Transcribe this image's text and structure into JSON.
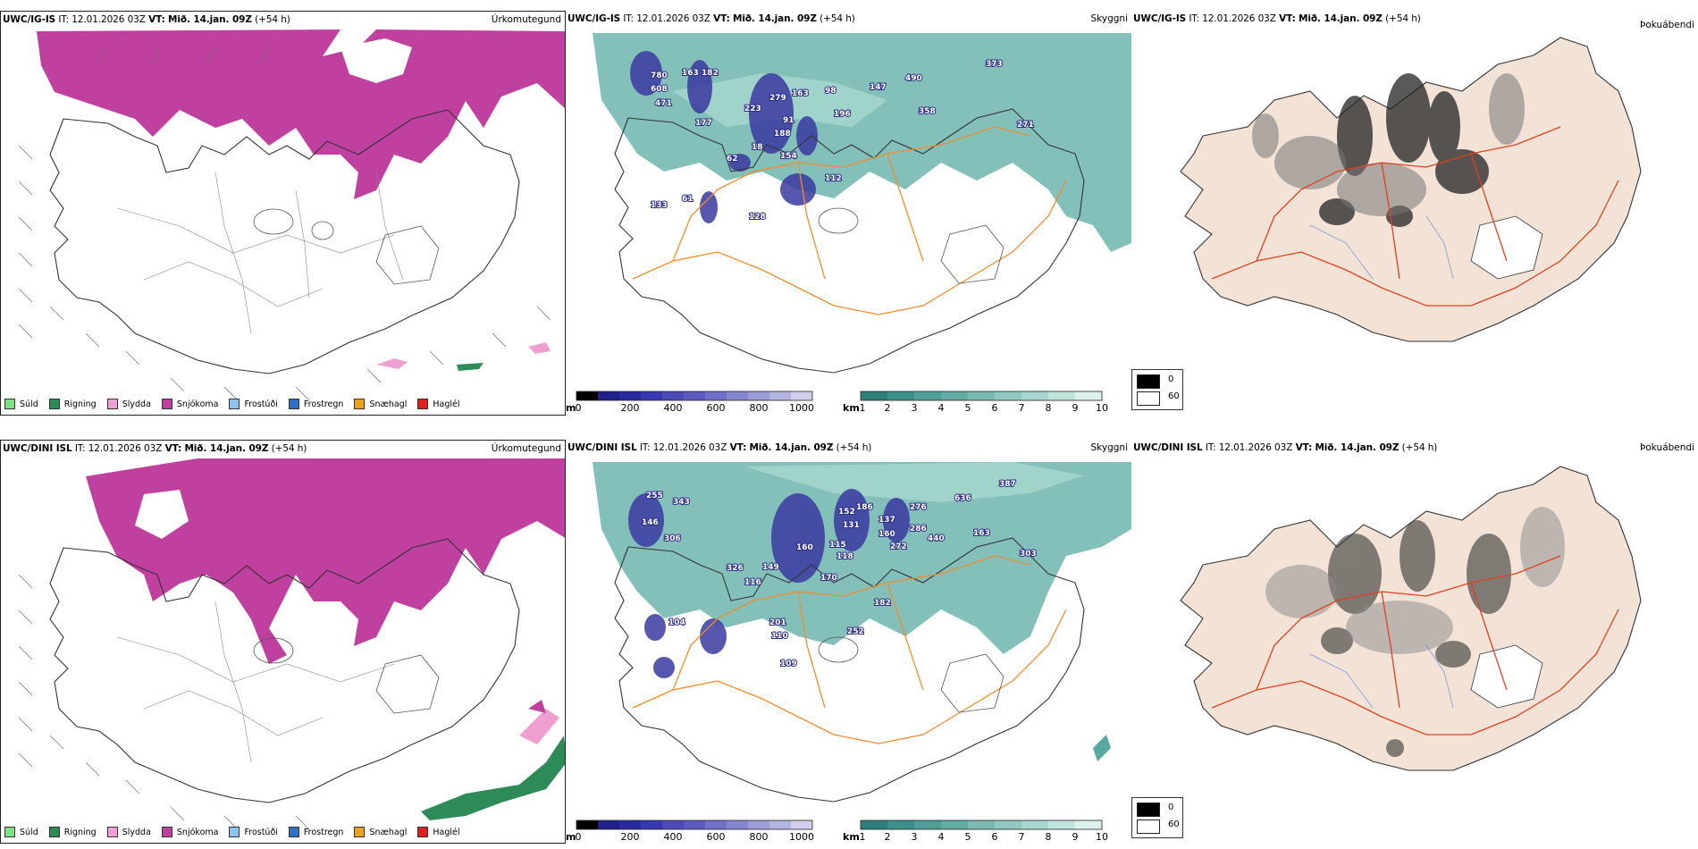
{
  "header": {
    "init_label": "IT:",
    "init_time": "12.01.2026 03Z",
    "valid_label": "VT:",
    "valid_time": "Mið. 14.jan. 09Z",
    "lead": "(+54 h)"
  },
  "rows": [
    {
      "model": "UWC/IG-IS"
    },
    {
      "model": "UWC/DINI ISL"
    }
  ],
  "panel_titles": {
    "precip_type": "Úrkomutegund",
    "visibility": "Skyggni",
    "fog_prob": "Þokuábendi"
  },
  "precip_legend": [
    {
      "label": "Súld",
      "color": "#7fe07f"
    },
    {
      "label": "Rigning",
      "color": "#2e8b57"
    },
    {
      "label": "Slydda",
      "color": "#f0a0d0"
    },
    {
      "label": "Snjókoma",
      "color": "#c040a0"
    },
    {
      "label": "Frostúði",
      "color": "#90c0f0"
    },
    {
      "label": "Frostregn",
      "color": "#3070c0"
    },
    {
      "label": "Snæhagl",
      "color": "#f0a020"
    },
    {
      "label": "Haglél",
      "color": "#e02020"
    }
  ],
  "visibility_m_scale": {
    "unit": "m",
    "ticks": [
      "0",
      "200",
      "400",
      "600",
      "800",
      "1000"
    ]
  },
  "visibility_km_scale": {
    "unit": "km",
    "ticks": [
      "1",
      "2",
      "3",
      "4",
      "5",
      "6",
      "7",
      "8",
      "9",
      "10"
    ]
  },
  "fog_legend": {
    "top": "0",
    "bottom": "60"
  },
  "vis_labels_top": [
    "780",
    "163",
    "182",
    "608",
    "471",
    "177",
    "223",
    "279",
    "163",
    "98",
    "147",
    "490",
    "373",
    "358",
    "91",
    "196",
    "271",
    "188",
    "62",
    "18",
    "154",
    "112",
    "133",
    "61",
    "128"
  ],
  "vis_labels_bottom": [
    "255",
    "343",
    "146",
    "306",
    "152",
    "186",
    "131",
    "137",
    "276",
    "636",
    "387",
    "286",
    "160",
    "440",
    "163",
    "160",
    "115",
    "272",
    "118",
    "326",
    "149",
    "170",
    "303",
    "116",
    "104",
    "182",
    "201",
    "110",
    "252",
    "109"
  ],
  "colors": {
    "snow": "#c040a0",
    "vis_teal": "#4a9e98",
    "vis_blue": "#3a3aa0",
    "road": "#f08c2a",
    "road_red": "#e04020",
    "land_beige": "#f3e3d6"
  }
}
